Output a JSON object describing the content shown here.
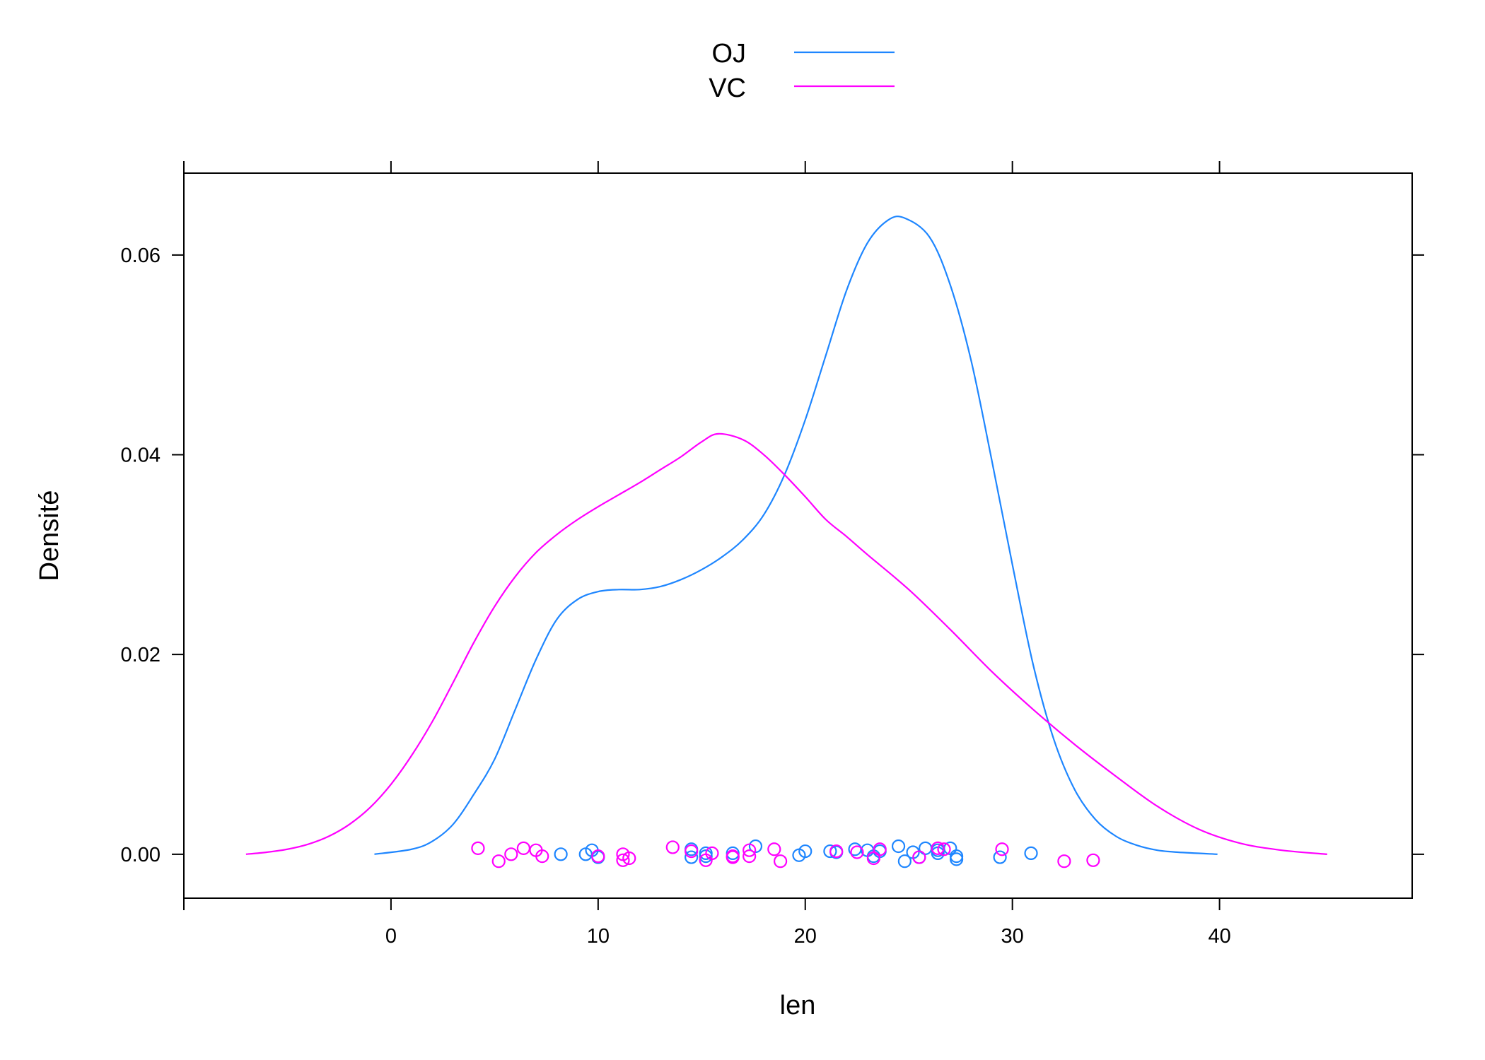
{
  "chart_data": {
    "type": "line",
    "xlabel": "len",
    "ylabel": "Densité",
    "xlim": [
      -10,
      49.3
    ],
    "ylim": [
      -0.0044,
      0.0682
    ],
    "x_ticks": [
      0,
      10,
      20,
      30,
      40
    ],
    "x_tick_labels": [
      "0",
      "10",
      "20",
      "30",
      "40"
    ],
    "y_ticks": [
      0,
      0.02,
      0.04,
      0.06
    ],
    "y_tick_labels": [
      "0.00",
      "0.02",
      "0.04",
      "0.06"
    ],
    "grid": false,
    "legend_position": "top",
    "series": [
      {
        "name": "OJ",
        "color": "#1E86FF",
        "density": [
          [
            -0.8,
            0.0
          ],
          [
            1,
            0.0005
          ],
          [
            2,
            0.0013
          ],
          [
            3,
            0.003
          ],
          [
            4,
            0.006
          ],
          [
            5,
            0.0095
          ],
          [
            6,
            0.0145
          ],
          [
            7,
            0.0195
          ],
          [
            8,
            0.0235
          ],
          [
            9,
            0.0255
          ],
          [
            10,
            0.0263
          ],
          [
            11,
            0.0265
          ],
          [
            12,
            0.0265
          ],
          [
            13,
            0.0268
          ],
          [
            14,
            0.0275
          ],
          [
            15,
            0.0285
          ],
          [
            16,
            0.0298
          ],
          [
            17,
            0.0315
          ],
          [
            18,
            0.034
          ],
          [
            19,
            0.038
          ],
          [
            20,
            0.0435
          ],
          [
            21,
            0.05
          ],
          [
            22,
            0.0565
          ],
          [
            23,
            0.0612
          ],
          [
            24,
            0.0635
          ],
          [
            24.8,
            0.0637
          ],
          [
            26,
            0.0618
          ],
          [
            27,
            0.057
          ],
          [
            28,
            0.0495
          ],
          [
            29,
            0.0395
          ],
          [
            30,
            0.029
          ],
          [
            31,
            0.019
          ],
          [
            32,
            0.0115
          ],
          [
            33,
            0.0065
          ],
          [
            34,
            0.0035
          ],
          [
            35,
            0.0018
          ],
          [
            36,
            0.0009
          ],
          [
            37,
            0.0004
          ],
          [
            38,
            0.0002
          ],
          [
            39.9,
            0.0
          ]
        ],
        "points": [
          [
            8.2,
            0.0
          ],
          [
            9.4,
            0.0
          ],
          [
            9.7,
            0.0004
          ],
          [
            10.0,
            -0.0003
          ],
          [
            14.5,
            0.0005
          ],
          [
            14.5,
            -0.0003
          ],
          [
            15.2,
            -0.0002
          ],
          [
            15.2,
            0.0001
          ],
          [
            16.5,
            0.0001
          ],
          [
            17.6,
            0.0008
          ],
          [
            19.7,
            -0.0001
          ],
          [
            20.0,
            0.0003
          ],
          [
            21.2,
            0.0003
          ],
          [
            21.5,
            0.0002
          ],
          [
            22.4,
            0.0005
          ],
          [
            23.0,
            0.0004
          ],
          [
            23.3,
            -0.0002
          ],
          [
            23.6,
            0.0003
          ],
          [
            24.5,
            0.0008
          ],
          [
            24.8,
            -0.0007
          ],
          [
            25.2,
            0.0002
          ],
          [
            25.5,
            -0.0003
          ],
          [
            25.8,
            0.0006
          ],
          [
            26.4,
            0.0001
          ],
          [
            26.4,
            0.0004
          ],
          [
            27.3,
            -0.0002
          ],
          [
            27.3,
            -0.0005
          ],
          [
            29.4,
            -0.0003
          ],
          [
            30.9,
            0.0001
          ],
          [
            27.0,
            0.0006
          ]
        ]
      },
      {
        "name": "VC",
        "color": "#FF00FF",
        "density": [
          [
            -7.0,
            0.0
          ],
          [
            -6,
            0.0002
          ],
          [
            -5,
            0.0005
          ],
          [
            -4,
            0.001
          ],
          [
            -3,
            0.0018
          ],
          [
            -2,
            0.003
          ],
          [
            -1,
            0.0047
          ],
          [
            0,
            0.007
          ],
          [
            1,
            0.0099
          ],
          [
            2,
            0.0133
          ],
          [
            3,
            0.0172
          ],
          [
            4,
            0.0212
          ],
          [
            5,
            0.0248
          ],
          [
            6,
            0.0278
          ],
          [
            7,
            0.0302
          ],
          [
            8,
            0.032
          ],
          [
            9,
            0.0335
          ],
          [
            10,
            0.0348
          ],
          [
            11,
            0.036
          ],
          [
            12,
            0.0372
          ],
          [
            13,
            0.0385
          ],
          [
            14,
            0.0398
          ],
          [
            15,
            0.0413
          ],
          [
            15.8,
            0.0421
          ],
          [
            17,
            0.0415
          ],
          [
            18,
            0.04
          ],
          [
            19,
            0.038
          ],
          [
            20,
            0.0358
          ],
          [
            21,
            0.0335
          ],
          [
            22,
            0.0318
          ],
          [
            23,
            0.03
          ],
          [
            25,
            0.0265
          ],
          [
            27,
            0.0225
          ],
          [
            29,
            0.0183
          ],
          [
            31,
            0.0145
          ],
          [
            33,
            0.011
          ],
          [
            35,
            0.0078
          ],
          [
            37,
            0.0048
          ],
          [
            39,
            0.0025
          ],
          [
            41,
            0.0011
          ],
          [
            43,
            0.0004
          ],
          [
            45.2,
            0.0
          ]
        ],
        "points": [
          [
            4.2,
            0.0006
          ],
          [
            5.2,
            -0.0007
          ],
          [
            5.8,
            0.0
          ],
          [
            6.4,
            0.0006
          ],
          [
            7.0,
            0.0004
          ],
          [
            7.3,
            -0.0002
          ],
          [
            10.0,
            -0.0002
          ],
          [
            11.2,
            0.0
          ],
          [
            11.2,
            -0.0006
          ],
          [
            11.5,
            -0.0004
          ],
          [
            13.6,
            0.0007
          ],
          [
            14.5,
            0.0003
          ],
          [
            15.2,
            -0.0006
          ],
          [
            15.5,
            0.0001
          ],
          [
            16.5,
            -0.0002
          ],
          [
            16.5,
            -0.0003
          ],
          [
            17.3,
            0.0004
          ],
          [
            17.3,
            -0.0002
          ],
          [
            18.5,
            0.0005
          ],
          [
            18.8,
            -0.0007
          ],
          [
            21.5,
            0.0003
          ],
          [
            22.5,
            0.0002
          ],
          [
            23.3,
            -0.0004
          ],
          [
            23.6,
            0.0005
          ],
          [
            25.5,
            -0.0003
          ],
          [
            26.4,
            0.0006
          ],
          [
            26.7,
            0.0005
          ],
          [
            29.5,
            0.0005
          ],
          [
            32.5,
            -0.0007
          ],
          [
            33.9,
            -0.0006
          ]
        ]
      }
    ]
  }
}
